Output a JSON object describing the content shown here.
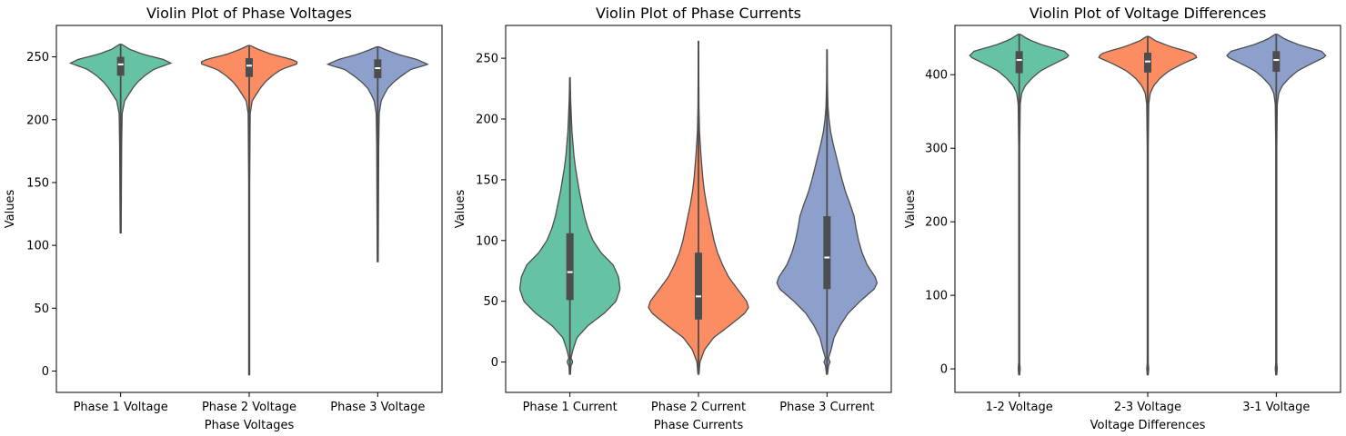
{
  "chart_data": [
    {
      "type": "violin",
      "title": "Violin Plot of Phase Voltages",
      "xlabel": "Phase Voltages",
      "ylabel": "Values",
      "ylim": [
        -17,
        275
      ],
      "yticks": [
        0,
        50,
        100,
        150,
        200,
        250
      ],
      "categories": [
        "Phase 1 Voltage",
        "Phase 2 Voltage",
        "Phase 3 Voltage"
      ],
      "colors": [
        "#66c2a5",
        "#fc8d62",
        "#8da0cb"
      ],
      "series": [
        {
          "min": 110,
          "max": 260,
          "q1": 235,
          "median": 244,
          "q3": 250,
          "profile": [
            [
              110,
              0.01
            ],
            [
              180,
              0.02
            ],
            [
              205,
              0.03
            ],
            [
              215,
              0.08
            ],
            [
              220,
              0.16
            ],
            [
              225,
              0.24
            ],
            [
              230,
              0.34
            ],
            [
              235,
              0.48
            ],
            [
              240,
              0.66
            ],
            [
              245,
              1.0
            ],
            [
              248,
              0.85
            ],
            [
              252,
              0.45
            ],
            [
              256,
              0.18
            ],
            [
              260,
              0.02
            ]
          ]
        },
        {
          "min": -3,
          "max": 259,
          "q1": 234,
          "median": 243,
          "q3": 249,
          "profile": [
            [
              -3,
              0.01
            ],
            [
              150,
              0.01
            ],
            [
              205,
              0.02
            ],
            [
              215,
              0.06
            ],
            [
              220,
              0.14
            ],
            [
              225,
              0.22
            ],
            [
              230,
              0.32
            ],
            [
              235,
              0.46
            ],
            [
              240,
              0.64
            ],
            [
              245,
              1.0
            ],
            [
              248,
              0.85
            ],
            [
              252,
              0.45
            ],
            [
              256,
              0.18
            ],
            [
              259,
              0.02
            ]
          ]
        },
        {
          "min": 87,
          "max": 258,
          "q1": 233,
          "median": 241,
          "q3": 248,
          "profile": [
            [
              87,
              0.01
            ],
            [
              180,
              0.02
            ],
            [
              205,
              0.03
            ],
            [
              215,
              0.07
            ],
            [
              220,
              0.13
            ],
            [
              225,
              0.2
            ],
            [
              230,
              0.32
            ],
            [
              235,
              0.48
            ],
            [
              240,
              0.66
            ],
            [
              244,
              1.0
            ],
            [
              248,
              0.78
            ],
            [
              252,
              0.4
            ],
            [
              256,
              0.14
            ],
            [
              258,
              0.02
            ]
          ]
        }
      ]
    },
    {
      "type": "violin",
      "title": "Violin Plot of Phase Currents",
      "xlabel": "Phase Currents",
      "ylabel": "Values",
      "ylim": [
        -25,
        277
      ],
      "yticks": [
        0,
        50,
        100,
        150,
        200,
        250
      ],
      "categories": [
        "Phase 1 Current",
        "Phase 2 Current",
        "Phase 3 Current"
      ],
      "colors": [
        "#66c2a5",
        "#fc8d62",
        "#8da0cb"
      ],
      "series": [
        {
          "min": -10,
          "max": 234,
          "q1": 51,
          "median": 74,
          "q3": 106,
          "profile": [
            [
              -10,
              0.01
            ],
            [
              -3,
              0.02
            ],
            [
              0,
              0.06
            ],
            [
              3,
              0.02
            ],
            [
              10,
              0.06
            ],
            [
              20,
              0.14
            ],
            [
              30,
              0.36
            ],
            [
              40,
              0.68
            ],
            [
              50,
              0.92
            ],
            [
              60,
              1.0
            ],
            [
              70,
              0.97
            ],
            [
              80,
              0.86
            ],
            [
              90,
              0.62
            ],
            [
              100,
              0.46
            ],
            [
              110,
              0.36
            ],
            [
              120,
              0.29
            ],
            [
              130,
              0.24
            ],
            [
              140,
              0.19
            ],
            [
              150,
              0.15
            ],
            [
              160,
              0.11
            ],
            [
              170,
              0.08
            ],
            [
              180,
              0.06
            ],
            [
              190,
              0.04
            ],
            [
              200,
              0.03
            ],
            [
              215,
              0.015
            ],
            [
              234,
              0.005
            ]
          ]
        },
        {
          "min": -10,
          "max": 264,
          "q1": 35,
          "median": 54,
          "q3": 90,
          "profile": [
            [
              -10,
              0.01
            ],
            [
              0,
              0.03
            ],
            [
              10,
              0.12
            ],
            [
              20,
              0.3
            ],
            [
              30,
              0.62
            ],
            [
              40,
              0.92
            ],
            [
              45,
              1.0
            ],
            [
              50,
              0.96
            ],
            [
              60,
              0.78
            ],
            [
              70,
              0.6
            ],
            [
              80,
              0.48
            ],
            [
              90,
              0.38
            ],
            [
              100,
              0.31
            ],
            [
              110,
              0.26
            ],
            [
              120,
              0.21
            ],
            [
              130,
              0.16
            ],
            [
              140,
              0.12
            ],
            [
              150,
              0.09
            ],
            [
              160,
              0.07
            ],
            [
              170,
              0.05
            ],
            [
              180,
              0.035
            ],
            [
              190,
              0.02
            ],
            [
              210,
              0.01
            ],
            [
              264,
              0.003
            ]
          ]
        },
        {
          "min": -10,
          "max": 257,
          "q1": 60,
          "median": 86,
          "q3": 120,
          "profile": [
            [
              -10,
              0.01
            ],
            [
              -3,
              0.03
            ],
            [
              0,
              0.06
            ],
            [
              3,
              0.03
            ],
            [
              10,
              0.08
            ],
            [
              20,
              0.14
            ],
            [
              30,
              0.26
            ],
            [
              40,
              0.42
            ],
            [
              50,
              0.66
            ],
            [
              60,
              0.94
            ],
            [
              65,
              1.0
            ],
            [
              70,
              0.96
            ],
            [
              80,
              0.8
            ],
            [
              90,
              0.7
            ],
            [
              100,
              0.63
            ],
            [
              110,
              0.58
            ],
            [
              120,
              0.54
            ],
            [
              130,
              0.46
            ],
            [
              140,
              0.37
            ],
            [
              150,
              0.3
            ],
            [
              160,
              0.24
            ],
            [
              170,
              0.18
            ],
            [
              180,
              0.12
            ],
            [
              190,
              0.07
            ],
            [
              200,
              0.04
            ],
            [
              210,
              0.02
            ],
            [
              230,
              0.008
            ],
            [
              257,
              0.003
            ]
          ]
        }
      ]
    },
    {
      "type": "violin",
      "title": "Violin Plot of Voltage Differences",
      "xlabel": "Voltage Differences",
      "ylabel": "Values",
      "ylim": [
        -32,
        467
      ],
      "yticks": [
        0,
        100,
        200,
        300,
        400
      ],
      "categories": [
        "1-2 Voltage",
        "2-3 Voltage",
        "3-1 Voltage"
      ],
      "colors": [
        "#66c2a5",
        "#fc8d62",
        "#8da0cb"
      ],
      "series": [
        {
          "min": -8,
          "max": 455,
          "q1": 402,
          "median": 420,
          "q3": 432,
          "profile": [
            [
              -8,
              0.01
            ],
            [
              0,
              0.02
            ],
            [
              8,
              0.01
            ],
            [
              300,
              0.01
            ],
            [
              360,
              0.02
            ],
            [
              375,
              0.05
            ],
            [
              385,
              0.12
            ],
            [
              395,
              0.25
            ],
            [
              405,
              0.42
            ],
            [
              415,
              0.7
            ],
            [
              425,
              1.0
            ],
            [
              432,
              0.9
            ],
            [
              440,
              0.48
            ],
            [
              448,
              0.18
            ],
            [
              455,
              0.02
            ]
          ]
        },
        {
          "min": -8,
          "max": 452,
          "q1": 403,
          "median": 418,
          "q3": 430,
          "profile": [
            [
              -8,
              0.01
            ],
            [
              0,
              0.02
            ],
            [
              8,
              0.01
            ],
            [
              300,
              0.01
            ],
            [
              360,
              0.02
            ],
            [
              375,
              0.05
            ],
            [
              385,
              0.12
            ],
            [
              395,
              0.24
            ],
            [
              405,
              0.42
            ],
            [
              415,
              0.7
            ],
            [
              424,
              1.0
            ],
            [
              430,
              0.88
            ],
            [
              438,
              0.46
            ],
            [
              446,
              0.16
            ],
            [
              452,
              0.02
            ]
          ]
        },
        {
          "min": -8,
          "max": 455,
          "q1": 404,
          "median": 420,
          "q3": 432,
          "profile": [
            [
              -8,
              0.01
            ],
            [
              0,
              0.02
            ],
            [
              8,
              0.01
            ],
            [
              300,
              0.01
            ],
            [
              360,
              0.02
            ],
            [
              375,
              0.05
            ],
            [
              385,
              0.12
            ],
            [
              395,
              0.25
            ],
            [
              405,
              0.42
            ],
            [
              415,
              0.7
            ],
            [
              425,
              1.0
            ],
            [
              432,
              0.9
            ],
            [
              440,
              0.48
            ],
            [
              448,
              0.18
            ],
            [
              455,
              0.02
            ]
          ]
        }
      ]
    }
  ]
}
